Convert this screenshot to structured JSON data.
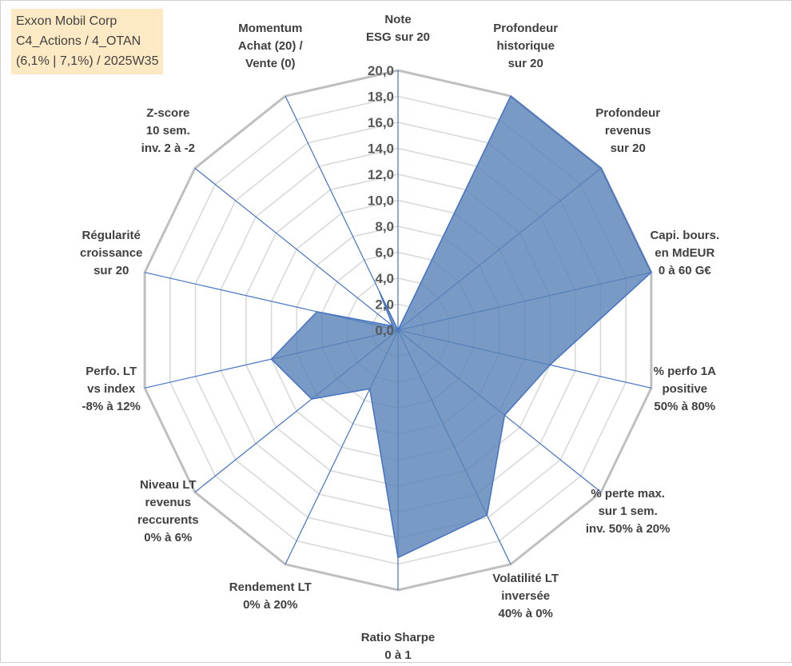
{
  "info_box": {
    "line1": "Exxon Mobil Corp",
    "line2": "C4_Actions / 4_OTAN",
    "line3": "(6,1% | 7,1%) / 2025W35"
  },
  "colors": {
    "area_fill": "#5b84b8",
    "area_stroke": "#4472c4",
    "axis_line": "#4472c4",
    "grid": "#d9d9d9",
    "outer_ring": "#bfbfbf",
    "text": "#404040",
    "info_bg": "#fde9c4"
  },
  "chart_data": {
    "type": "radar",
    "rmin": 0,
    "rmax": 20,
    "tick_step": 2,
    "tick_labels": [
      "0,0",
      "2,0",
      "4,0",
      "6,0",
      "8,0",
      "10,0",
      "12,0",
      "14,0",
      "16,0",
      "18,0",
      "20,0"
    ],
    "axes": [
      {
        "label": [
          "Note",
          "ESG sur 20"
        ],
        "value": 0
      },
      {
        "label": [
          "Profondeur",
          "historique",
          "sur 20"
        ],
        "value": 20
      },
      {
        "label": [
          "Profondeur",
          "revenus",
          "sur 20"
        ],
        "value": 20
      },
      {
        "label": [
          "Capi. bours.",
          "en MdEUR",
          "0 à 60 G€"
        ],
        "value": 20
      },
      {
        "label": [
          "% perfo 1A",
          "positive",
          "50% à 80%"
        ],
        "value": 12
      },
      {
        "label": [
          "% perte max.",
          "sur 1 sem.",
          "inv. 50% à 20%"
        ],
        "value": 10.5
      },
      {
        "label": [
          "Volatilité LT",
          "inversée",
          "40% à 0%"
        ],
        "value": 15.8
      },
      {
        "label": [
          "Ratio Sharpe",
          "0 à 1"
        ],
        "value": 17.5
      },
      {
        "label": [
          "Rendement LT",
          "0% à 20%"
        ],
        "value": 5
      },
      {
        "label": [
          "Niveau LT",
          "revenus",
          "reccurents",
          "0% à 6%"
        ],
        "value": 8.5
      },
      {
        "label": [
          "Perfo. LT",
          "vs index",
          "-8% à 12%"
        ],
        "value": 10
      },
      {
        "label": [
          "Régularité",
          "croissance",
          "sur 20"
        ],
        "value": 6.4
      },
      {
        "label": [
          "Z-score",
          "10 sem.",
          "inv. 2 à -2"
        ],
        "value": 0.5
      },
      {
        "label": [
          "Momentum",
          "Achat (20) /",
          "Vente (0)"
        ],
        "value": 3.3
      }
    ],
    "grid": true,
    "legend": "none"
  }
}
